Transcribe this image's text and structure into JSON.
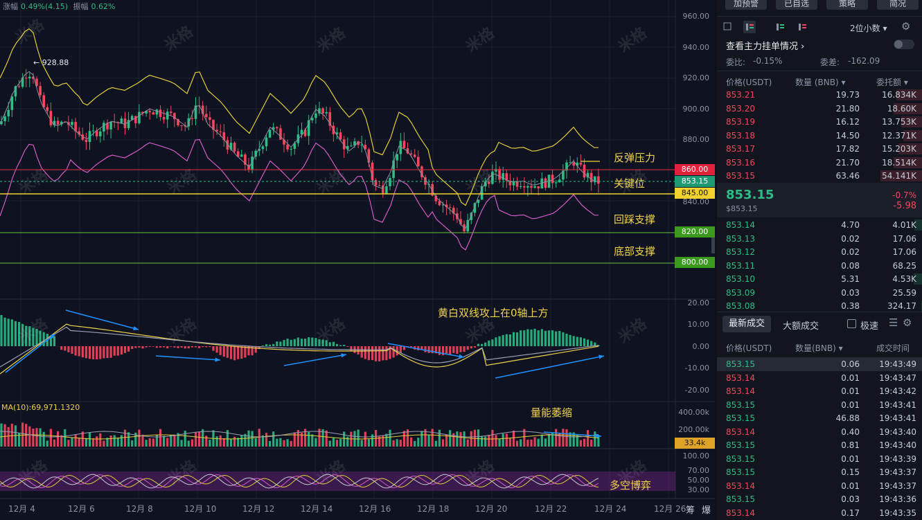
{
  "stats": {
    "change_label": "涨幅",
    "change_value": "0.49%(4.15)",
    "amp_label": "振幅",
    "amp_value": "0.62%"
  },
  "price_axis": [
    "960.00",
    "940.00",
    "920.00",
    "900.00",
    "880.00",
    "840.00"
  ],
  "macd_axis": [
    "20.00",
    "10.00",
    "0.00",
    "-10.00",
    "-20.00"
  ],
  "vol_axis": [
    "400.00k",
    "200.00k"
  ],
  "rsi_axis": [
    "100.00",
    "70.00",
    "50.00",
    "30.00"
  ],
  "price_labels": {
    "p860": "860.00",
    "p853": "853.15",
    "p845": "845.00",
    "p820": "820.00",
    "p800": "800.00",
    "vol": "33.4k"
  },
  "high_label": "← 928.88",
  "ma_label": "MA(10):69,971.1320",
  "annotations": {
    "resist": "反弹压力",
    "key": "关键位",
    "pullback": "回踩支撑",
    "bottom": "底部支撑",
    "macd": "黄白双线攻上在0轴上方",
    "volume": "量能萎缩",
    "rsi": "多空博弈"
  },
  "watermark": "米格",
  "dates": [
    "12月 4",
    "12月 6",
    "12月 8",
    "12月 10",
    "12月 12",
    "12月 14",
    "12月 16",
    "12月 18",
    "12月 20",
    "12月 22",
    "12月 24",
    "12月 26"
  ],
  "bottom_icons": [
    "筹",
    "爆"
  ],
  "toolbar": [
    "加预警",
    "已自选",
    "策略",
    "简况"
  ],
  "orderbook": {
    "precision": "2位小数",
    "main_orders": "查看主力挂单情况",
    "ratio_label": "委比:",
    "ratio_value": "-0.15%",
    "diff_label": "委差:",
    "diff_value": "-162.09",
    "h_price": "价格(USDT)",
    "h_qty": "数量 (BNB)",
    "h_total": "委托额",
    "asks": [
      {
        "p": "853.21",
        "q": "19.73",
        "t": "16.834K",
        "d": 0.62
      },
      {
        "p": "853.20",
        "q": "21.80",
        "t": "18.60K",
        "d": 0.68
      },
      {
        "p": "853.19",
        "q": "16.12",
        "t": "13.753K",
        "d": 0.5
      },
      {
        "p": "853.18",
        "q": "14.50",
        "t": "12.371K",
        "d": 0.45
      },
      {
        "p": "853.17",
        "q": "17.82",
        "t": "15.203K",
        "d": 0.56
      },
      {
        "p": "853.16",
        "q": "21.70",
        "t": "18.514K",
        "d": 0.68
      },
      {
        "p": "853.15",
        "q": "63.46",
        "t": "54.141K",
        "d": 1.0
      }
    ],
    "last_price": "853.15",
    "last_sub": "$853.15",
    "last_pct": "-0.7%",
    "last_chg": "-5.98",
    "bids": [
      {
        "p": "853.14",
        "q": "4.70",
        "t": "4.01K",
        "d": 0.18
      },
      {
        "p": "853.13",
        "q": "0.02",
        "t": "17.06",
        "d": 0.0
      },
      {
        "p": "853.12",
        "q": "0.02",
        "t": "17.06",
        "d": 0.0
      },
      {
        "p": "853.11",
        "q": "0.08",
        "t": "68.25",
        "d": 0.0
      },
      {
        "p": "853.10",
        "q": "5.31",
        "t": "4.53K",
        "d": 0.2
      },
      {
        "p": "853.09",
        "q": "0.03",
        "t": "25.59",
        "d": 0.0
      },
      {
        "p": "853.08",
        "q": "0.38",
        "t": "324.17",
        "d": 0.01
      }
    ]
  },
  "trades": {
    "tab_latest": "最新成交",
    "tab_large": "大额成交",
    "rapid": "极速",
    "h_price": "价格(USDT)",
    "h_qty": "数量(BNB)",
    "h_time": "成交时间",
    "rows": [
      {
        "p": "853.15",
        "q": "0.06",
        "t": "19:43:49",
        "s": "g"
      },
      {
        "p": "853.14",
        "q": "0.01",
        "t": "19:43:47",
        "s": "r"
      },
      {
        "p": "853.14",
        "q": "0.01",
        "t": "19:43:42",
        "s": "r"
      },
      {
        "p": "853.15",
        "q": "0.01",
        "t": "19:43:41",
        "s": "g"
      },
      {
        "p": "853.15",
        "q": "46.88",
        "t": "19:43:41",
        "s": "g"
      },
      {
        "p": "853.14",
        "q": "0.40",
        "t": "19:43:40",
        "s": "r"
      },
      {
        "p": "853.15",
        "q": "0.81",
        "t": "19:43:40",
        "s": "g"
      },
      {
        "p": "853.15",
        "q": "0.01",
        "t": "19:43:39",
        "s": "g"
      },
      {
        "p": "853.15",
        "q": "0.15",
        "t": "19:43:37",
        "s": "g"
      },
      {
        "p": "853.14",
        "q": "0.01",
        "t": "19:43:37",
        "s": "r"
      },
      {
        "p": "853.15",
        "q": "0.03",
        "t": "19:43:36",
        "s": "g"
      },
      {
        "p": "853.14",
        "q": "0.17",
        "t": "19:43:35",
        "s": "r"
      }
    ]
  },
  "colors": {
    "up": "#2ebd85",
    "down": "#f6465d",
    "ann": "#f0d34a"
  }
}
